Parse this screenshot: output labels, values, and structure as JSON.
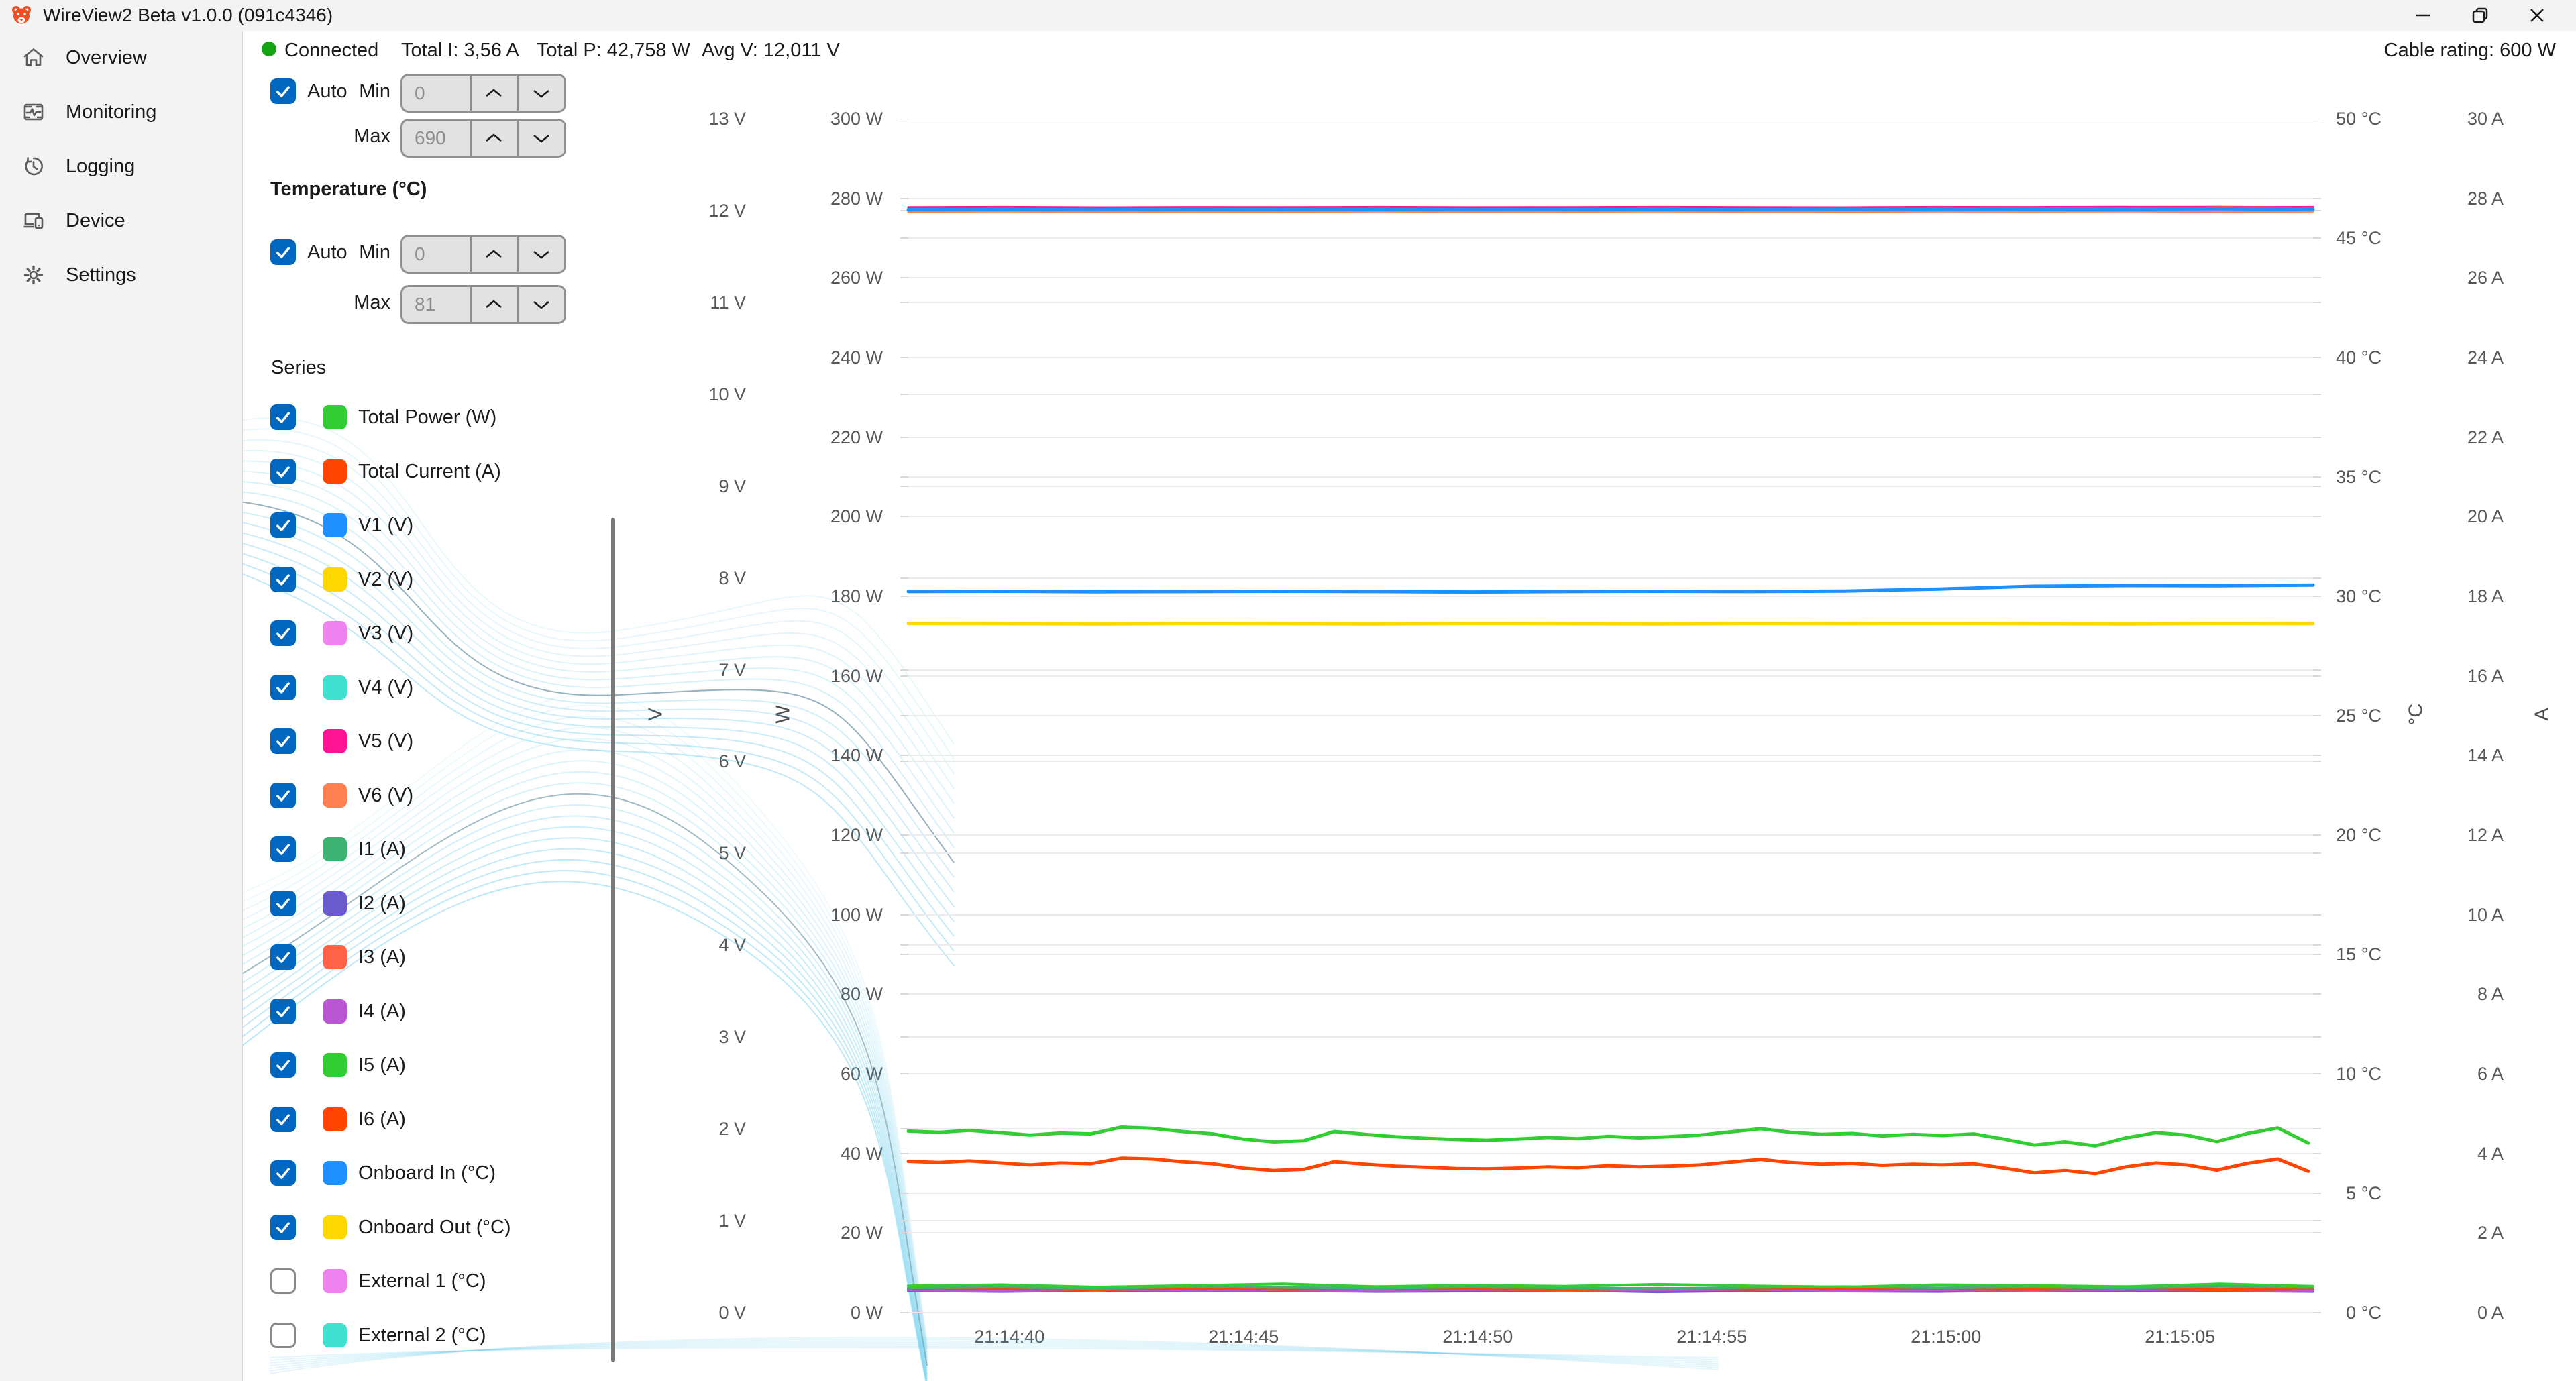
{
  "window": {
    "title": "WireView2 Beta v1.0.0 (091c4346)",
    "controls": {
      "minimize": "minimize",
      "restore": "restore",
      "close": "close"
    }
  },
  "sidebar": {
    "items": [
      {
        "label": "Overview",
        "icon": "home-icon"
      },
      {
        "label": "Monitoring",
        "icon": "monitoring-icon"
      },
      {
        "label": "Logging",
        "icon": "logging-history-icon"
      },
      {
        "label": "Device",
        "icon": "device-icon"
      },
      {
        "label": "Settings",
        "icon": "settings-gear-icon"
      }
    ]
  },
  "statusbar": {
    "connection_label": "Connected",
    "connection_color": "#16a316",
    "total_current": "Total I: 3,56 A",
    "total_power": "Total P: 42,758 W",
    "avg_voltage": "Avg V: 12,011 V",
    "cable_rating": "Cable rating: 600 W"
  },
  "panel": {
    "accent_color": "#0067C0",
    "scrolled_section": {
      "auto_label": "Auto",
      "auto_checked": true,
      "min_label": "Min",
      "min_value": "0",
      "max_label": "Max",
      "max_value": "690"
    },
    "temperature_section": {
      "header": "Temperature (°C)",
      "auto_label": "Auto",
      "auto_checked": true,
      "min_label": "Min",
      "min_value": "0",
      "max_label": "Max",
      "max_value": "81"
    },
    "series_header": "Series",
    "series": [
      {
        "label": "Total Power (W)",
        "color": "#32CD32",
        "checked": true
      },
      {
        "label": "Total Current (A)",
        "color": "#FF4500",
        "checked": true
      },
      {
        "label": "V1 (V)",
        "color": "#1E90FF",
        "checked": true
      },
      {
        "label": "V2 (V)",
        "color": "#FFD700",
        "checked": true
      },
      {
        "label": "V3 (V)",
        "color": "#EE82EE",
        "checked": true
      },
      {
        "label": "V4 (V)",
        "color": "#40E0D0",
        "checked": true
      },
      {
        "label": "V5 (V)",
        "color": "#FF1493",
        "checked": true
      },
      {
        "label": "V6 (V)",
        "color": "#FF7F50",
        "checked": true
      },
      {
        "label": "I1 (A)",
        "color": "#3CB371",
        "checked": true
      },
      {
        "label": "I2 (A)",
        "color": "#6A5ACD",
        "checked": true
      },
      {
        "label": "I3 (A)",
        "color": "#FF6347",
        "checked": true
      },
      {
        "label": "I4 (A)",
        "color": "#BA55D3",
        "checked": true
      },
      {
        "label": "I5 (A)",
        "color": "#32CD32",
        "checked": true
      },
      {
        "label": "I6 (A)",
        "color": "#FF4500",
        "checked": true
      },
      {
        "label": "Onboard In (°C)",
        "color": "#1E90FF",
        "checked": true
      },
      {
        "label": "Onboard Out (°C)",
        "color": "#FFD700",
        "checked": true
      },
      {
        "label": "External 1 (°C)",
        "color": "#EE82EE",
        "checked": false
      },
      {
        "label": "External 2 (°C)",
        "color": "#40E0D0",
        "checked": false
      }
    ]
  },
  "chart_data": {
    "type": "line",
    "grid": true,
    "grid_color": "#ececec",
    "tick_text_color": "#575757",
    "x_axis": {
      "t_max": 30,
      "ticks": [
        {
          "t": 2.16,
          "label": "21:14:40"
        },
        {
          "t": 7.16,
          "label": "21:14:45"
        },
        {
          "t": 12.16,
          "label": "21:14:50"
        },
        {
          "t": 17.16,
          "label": "21:14:55"
        },
        {
          "t": 22.16,
          "label": "21:15:00"
        },
        {
          "t": 27.16,
          "label": "21:15:05"
        }
      ]
    },
    "y_axes": {
      "v": {
        "title": "V",
        "min": 0,
        "max": 13,
        "step": 1,
        "suffix": " V"
      },
      "w": {
        "title": "W",
        "min": 0,
        "max": 300,
        "step": 20,
        "suffix": " W"
      },
      "temp": {
        "title": "°C",
        "min": 0,
        "max": 50,
        "step": 5,
        "suffix": " °C"
      },
      "amp": {
        "title": "A",
        "min": 0,
        "max": 30,
        "step": 2,
        "suffix": " A"
      }
    },
    "series": [
      {
        "name": "V2 (V)",
        "axis": "v",
        "color": "#FFD700",
        "width": 3,
        "t_step": 2,
        "values": [
          12.028,
          12.03,
          12.026,
          12.03,
          12.029,
          12.027,
          12.03,
          12.028,
          12.026,
          12.03,
          12.029,
          12.031,
          12.035,
          12.04,
          12.046,
          12.03
        ]
      },
      {
        "name": "V3 (V)",
        "axis": "v",
        "color": "#EE82EE",
        "width": 3,
        "t_step": 2,
        "values": [
          12.0,
          12.002,
          11.998,
          12.001,
          12.0,
          12.002,
          12.0,
          11.999,
          12.001,
          12.0,
          12.002,
          12.0,
          12.001,
          12.003,
          12.0,
          12.001
        ]
      },
      {
        "name": "V4 (V)",
        "axis": "v",
        "color": "#40E0D0",
        "width": 3,
        "t_step": 2,
        "values": [
          12.016,
          12.014,
          12.017,
          12.015,
          12.016,
          12.014,
          12.017,
          12.015,
          12.016,
          12.017,
          12.014,
          12.016,
          12.015,
          12.017,
          12.016,
          12.014
        ]
      },
      {
        "name": "V5 (V)",
        "axis": "v",
        "color": "#FF1493",
        "width": 3,
        "t_step": 2,
        "values": [
          12.038,
          12.04,
          12.036,
          12.039,
          12.038,
          12.04,
          12.037,
          12.038,
          12.04,
          12.038,
          12.036,
          12.04,
          12.039,
          12.041,
          12.038,
          12.04
        ]
      },
      {
        "name": "V6 (V)",
        "axis": "v",
        "color": "#FF7F50",
        "width": 3,
        "t_step": 2,
        "values": [
          11.988,
          11.99,
          11.986,
          11.989,
          11.988,
          11.99,
          11.987,
          11.988,
          11.99,
          11.988,
          11.986,
          11.99,
          11.989,
          11.991,
          11.988,
          11.99
        ]
      },
      {
        "name": "V1 (V)",
        "axis": "v",
        "color": "#1E90FF",
        "width": 5,
        "t_step": 2,
        "values": [
          12.011,
          12.012,
          12.01,
          12.012,
          12.011,
          12.013,
          12.01,
          12.011,
          12.012,
          12.01,
          12.012,
          12.014,
          12.016,
          12.018,
          12.02,
          12.015
        ]
      },
      {
        "name": "I2 (A)",
        "axis": "amp",
        "color": "#6A5ACD",
        "width": 4,
        "t_step": 2,
        "values": [
          0.55,
          0.53,
          0.56,
          0.54,
          0.55,
          0.53,
          0.54,
          0.56,
          0.52,
          0.55,
          0.54,
          0.53,
          0.56,
          0.54,
          0.55,
          0.53
        ]
      },
      {
        "name": "I4 (A)",
        "axis": "amp",
        "color": "#BA55D3",
        "width": 4,
        "t_step": 2,
        "values": [
          0.57,
          0.55,
          0.58,
          0.56,
          0.57,
          0.55,
          0.58,
          0.56,
          0.57,
          0.58,
          0.55,
          0.57,
          0.56,
          0.58,
          0.57,
          0.55
        ]
      },
      {
        "name": "I3 (A)",
        "axis": "amp",
        "color": "#FF6347",
        "width": 4,
        "t_step": 2,
        "values": [
          0.6,
          0.61,
          0.58,
          0.62,
          0.59,
          0.61,
          0.6,
          0.58,
          0.61,
          0.59,
          0.62,
          0.6,
          0.59,
          0.61,
          0.58,
          0.6
        ]
      },
      {
        "name": "I6 (A)",
        "axis": "amp",
        "color": "#FF4500",
        "width": 4,
        "t_step": 2,
        "values": [
          0.59,
          0.6,
          0.57,
          0.61,
          0.58,
          0.6,
          0.59,
          0.57,
          0.6,
          0.58,
          0.61,
          0.59,
          0.58,
          0.6,
          0.57,
          0.59
        ]
      },
      {
        "name": "I1 (A)",
        "axis": "amp",
        "color": "#3CB371",
        "width": 4,
        "t_step": 2,
        "values": [
          0.62,
          0.64,
          0.6,
          0.65,
          0.63,
          0.61,
          0.64,
          0.62,
          0.6,
          0.63,
          0.65,
          0.62,
          0.64,
          0.61,
          0.66,
          0.63
        ]
      },
      {
        "name": "I5 (A)",
        "axis": "amp",
        "color": "#32CD32",
        "width": 4,
        "t_step": 2,
        "values": [
          0.67,
          0.7,
          0.64,
          0.68,
          0.72,
          0.65,
          0.69,
          0.66,
          0.71,
          0.67,
          0.64,
          0.7,
          0.68,
          0.65,
          0.72,
          0.66
        ]
      },
      {
        "name": "Total Power (W)",
        "axis": "w",
        "color": "#32CD32",
        "width": 5,
        "t_step": 0.65,
        "values": [
          45.6,
          45.3,
          45.8,
          45.2,
          44.6,
          45.1,
          44.9,
          46.6,
          46.3,
          45.5,
          44.9,
          43.6,
          42.9,
          43.2,
          45.5,
          44.8,
          44.2,
          43.8,
          43.5,
          43.3,
          43.6,
          44.0,
          43.7,
          44.3,
          43.9,
          44.2,
          44.6,
          45.4,
          46.2,
          45.3,
          44.8,
          45.0,
          44.4,
          44.8,
          44.5,
          44.9,
          43.6,
          42.1,
          42.9,
          41.9,
          43.9,
          45.2,
          44.6,
          43.0,
          45.0,
          46.4,
          42.6
        ]
      },
      {
        "name": "Total Current (A)",
        "axis": "amp",
        "color": "#FF4500",
        "width": 5,
        "t_step": 0.65,
        "values": [
          3.8,
          3.77,
          3.81,
          3.76,
          3.71,
          3.76,
          3.74,
          3.88,
          3.86,
          3.79,
          3.74,
          3.63,
          3.57,
          3.6,
          3.79,
          3.73,
          3.68,
          3.65,
          3.62,
          3.61,
          3.63,
          3.66,
          3.64,
          3.69,
          3.66,
          3.68,
          3.71,
          3.78,
          3.85,
          3.77,
          3.73,
          3.75,
          3.7,
          3.73,
          3.71,
          3.74,
          3.63,
          3.51,
          3.57,
          3.49,
          3.66,
          3.76,
          3.71,
          3.58,
          3.75,
          3.86,
          3.55
        ]
      },
      {
        "name": "Onboard In (°C)",
        "axis": "temp",
        "color": "#1E90FF",
        "width": 5,
        "t_step": 2,
        "values": [
          30.2,
          30.21,
          30.19,
          30.2,
          30.21,
          30.2,
          30.18,
          30.2,
          30.21,
          30.2,
          30.22,
          30.3,
          30.42,
          30.45,
          30.44,
          30.47
        ]
      },
      {
        "name": "Onboard Out (°C)",
        "axis": "temp",
        "color": "#FFD700",
        "width": 5,
        "t_step": 2,
        "values": [
          28.86,
          28.85,
          28.84,
          28.86,
          28.85,
          28.84,
          28.86,
          28.85,
          28.84,
          28.86,
          28.85,
          28.86,
          28.85,
          28.84,
          28.86,
          28.85
        ]
      }
    ]
  }
}
